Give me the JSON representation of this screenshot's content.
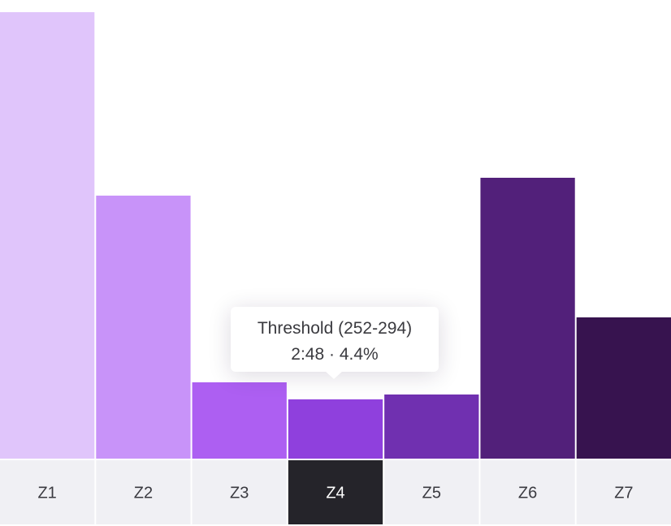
{
  "chart_data": {
    "type": "bar",
    "categories": [
      "Z1",
      "Z2",
      "Z3",
      "Z4",
      "Z5",
      "Z6",
      "Z7"
    ],
    "values": [
      550,
      324,
      94,
      73,
      79,
      346,
      174
    ],
    "ylim": [
      0,
      565
    ],
    "selected_index": 3,
    "colors": [
      "#e0c5fb",
      "#c893f9",
      "#ad5ff2",
      "#8f40dd",
      "#7030b0",
      "#52207a",
      "#37134f"
    ],
    "label_colors": {
      "bg": "#f0f0f4",
      "text": "#3a3a40",
      "selected_bg": "#25242a",
      "selected_text": "#ffffff"
    }
  },
  "tooltip": {
    "title": "Threshold (252-294)",
    "detail": "2:48 · 4.4%"
  }
}
